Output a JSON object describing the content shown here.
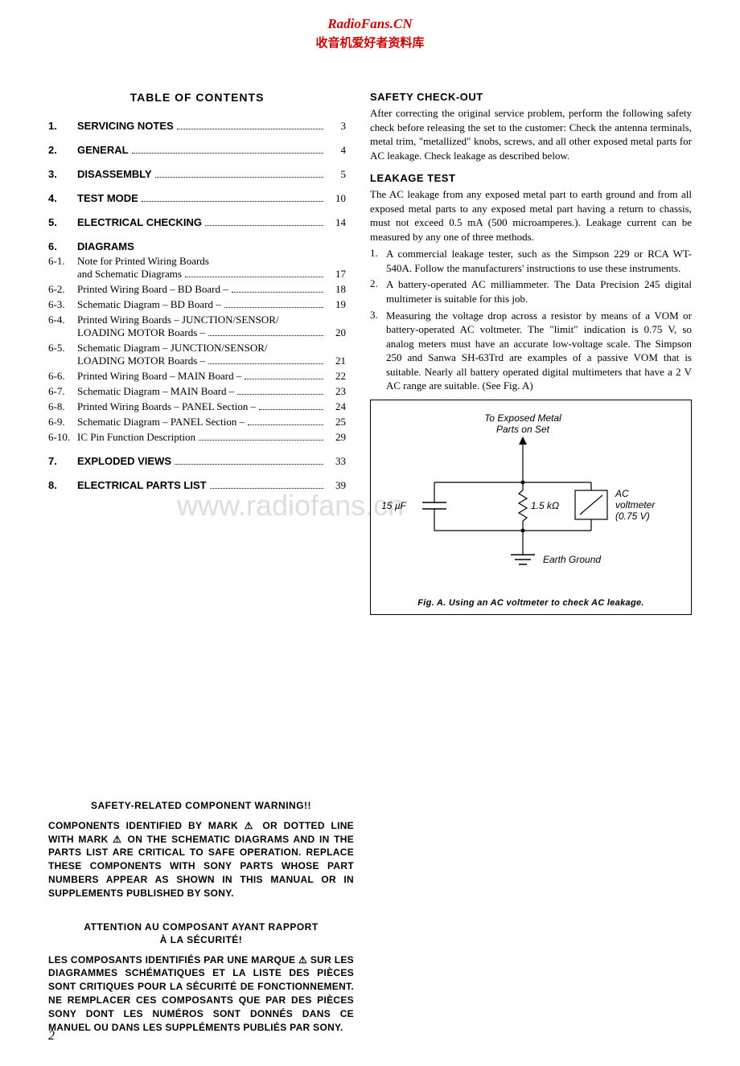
{
  "header": {
    "line1": "RadioFans.CN",
    "line2": "收音机爱好者资料库"
  },
  "watermark": "www.radiofans.cn",
  "toc": {
    "title": "TABLE  OF  CONTENTS",
    "main": [
      {
        "num": "1.",
        "label": "SERVICING  NOTES",
        "page": "3"
      },
      {
        "num": "2.",
        "label": "GENERAL",
        "page": "4"
      },
      {
        "num": "3.",
        "label": "DISASSEMBLY",
        "page": "5"
      },
      {
        "num": "4.",
        "label": "TEST  MODE",
        "page": "10"
      },
      {
        "num": "5.",
        "label": "ELECTRICAL  CHECKING",
        "page": "14"
      }
    ],
    "section6": {
      "num": "6.",
      "label": "DIAGRAMS"
    },
    "subs": [
      {
        "num": "6-1.",
        "lines": [
          "Note for Printed Wiring Boards",
          "and Schematic Diagrams"
        ],
        "page": "17"
      },
      {
        "num": "6-2.",
        "lines": [
          "Printed Wiring Board  – BD Board –"
        ],
        "page": "18"
      },
      {
        "num": "6-3.",
        "lines": [
          "Schematic Diagram  – BD Board –"
        ],
        "page": "19"
      },
      {
        "num": "6-4.",
        "lines": [
          "Printed Wiring Boards  – JUNCTION/SENSOR/",
          "LOADING MOTOR Boards –"
        ],
        "page": "20"
      },
      {
        "num": "6-5.",
        "lines": [
          "Schematic Diagram  – JUNCTION/SENSOR/",
          "LOADING MOTOR Boards –"
        ],
        "page": "21"
      },
      {
        "num": "6-6.",
        "lines": [
          "Printed Wiring Board  – MAIN Board –"
        ],
        "page": "22"
      },
      {
        "num": "6-7.",
        "lines": [
          "Schematic Diagram  – MAIN Board –"
        ],
        "page": "23"
      },
      {
        "num": "6-8.",
        "lines": [
          "Printed Wiring Boards  – PANEL Section –"
        ],
        "page": "24"
      },
      {
        "num": "6-9.",
        "lines": [
          "Schematic Diagram  – PANEL Section –"
        ],
        "page": "25"
      },
      {
        "num": "6-10.",
        "lines": [
          "IC Pin Function Description"
        ],
        "page": "29"
      }
    ],
    "main2": [
      {
        "num": "7.",
        "label": "EXPLODED  VIEWS",
        "page": "33"
      },
      {
        "num": "8.",
        "label": "ELECTRICAL  PARTS  LIST",
        "page": "39"
      }
    ]
  },
  "right": {
    "safety_head": "SAFETY  CHECK-OUT",
    "safety_body": "After correcting the original service problem, perform the following safety check before releasing the set to the customer: Check the antenna terminals, metal trim, \"metallized\" knobs, screws, and all other exposed metal parts for AC leakage. Check leakage as described below.",
    "leakage_head": "LEAKAGE  TEST",
    "leakage_body": "The AC leakage from any exposed metal part to earth ground and from all exposed metal parts to any exposed metal part having a return to chassis, must not exceed 0.5 mA (500 microamperes.). Leakage current can be measured by any one of three methods.",
    "list": [
      {
        "n": "1.",
        "t": "A commercial leakage tester, such as the Simpson 229 or RCA WT-540A. Follow the manufacturers' instructions to use these instruments."
      },
      {
        "n": "2.",
        "t": "A battery-operated AC milliammeter. The Data Precision 245 digital multimeter is suitable for this job."
      },
      {
        "n": "3.",
        "t": "Measuring the voltage drop across a resistor by means of a VOM or battery-operated AC voltmeter. The \"limit\" indication is 0.75 V, so analog meters must have an accurate low-voltage scale. The Simpson 250 and Sanwa SH-63Trd are examples of a passive VOM that is suitable. Nearly all battery operated digital multimeters that have a 2 V AC range are suitable.  (See Fig. A)"
      }
    ],
    "figure": {
      "top_label1": "To Exposed Metal",
      "top_label2": "Parts on Set",
      "cap_label": "0.15 µF",
      "res_label": "1.5 kΩ",
      "volt_label1": "AC",
      "volt_label2": "voltmeter",
      "volt_label3": "(0.75 V)",
      "ground_label": "Earth Ground",
      "caption": "Fig. A.    Using an AC voltmeter to check AC leakage."
    }
  },
  "warnings": {
    "en_title": "SAFETY-RELATED  COMPONENT  WARNING!!",
    "en_body": "COMPONENTS IDENTIFIED BY MARK ⚠ OR DOTTED LINE WITH MARK ⚠ ON THE SCHEMATIC DIAGRAMS AND IN THE PARTS LIST ARE CRITICAL TO SAFE OPERATION. REPLACE THESE COMPONENTS WITH SONY PARTS WHOSE PART NUMBERS APPEAR AS SHOWN IN THIS MANUAL OR IN SUPPLEMENTS PUBLISHED  BY  SONY.",
    "fr_title1": "ATTENTION  AU  COMPOSANT  AYANT  RAPPORT",
    "fr_title2": "À  LA  SÉCURITÉ!",
    "fr_body": "LES COMPOSANTS IDENTIFIÉS PAR UNE MARQUE ⚠ SUR LES DIAGRAMMES SCHÉMATIQUES ET LA LISTE DES PIÈCES SONT CRITIQUES POUR LA SÉCURITÉ DE FONCTIONNEMENT. NE REMPLACER CES COMPOSANTS QUE PAR DES PIÈCES SONY DONT LES NUMÉROS SONT DONNÉS DANS CE MANUEL OU DANS  LES  SUPPLÉMENTS  PUBLIÉS  PAR  SONY."
  },
  "page_number": "2"
}
